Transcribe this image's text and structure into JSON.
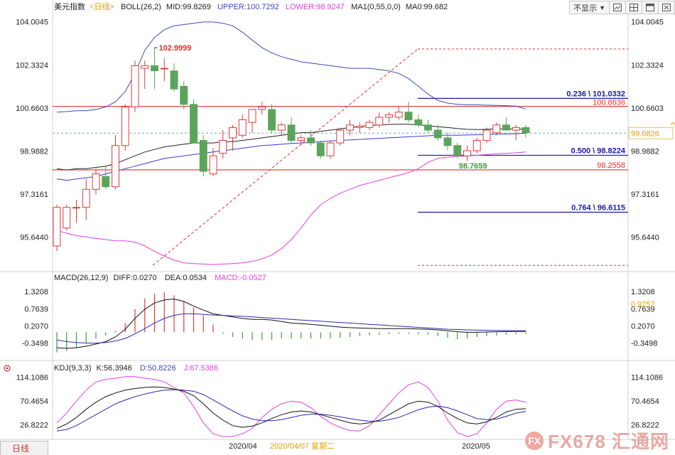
{
  "header": {
    "title": "美元指数",
    "period": "<日线>",
    "boll": "BOLL(26,2)",
    "mid": "MID:99.8269",
    "upper": "UPPER:100.7292",
    "lower": "LOWER:98.9247",
    "ma_params": "MA1(0,55,0,0)",
    "ma_value": "MA0:99.682"
  },
  "toolbar": {
    "hide_label": "不显示",
    "icons": [
      "chart-icon",
      "grid-icon",
      "window-icon",
      "close-icon"
    ]
  },
  "macd_header": {
    "title": "MACD(26,12,9)",
    "diff": "DIFF:0.0270",
    "dea": "DEA:0.0534",
    "macd": "MACD:-0.0527"
  },
  "kdj_header": {
    "title": "KDJ(9,3,3)",
    "k": "K:56.3946",
    "d": "D:50.8226",
    "j": "J:67.5386"
  },
  "bottom": {
    "tab_label": "日线",
    "date1": "2020/04",
    "date_cursor": "2020/04/07 星期二",
    "date2": "2020/05"
  },
  "watermark": {
    "logo": "FX",
    "text": "FX678 汇通网"
  },
  "colors": {
    "up": "#e03a3a",
    "down": "#5aa55a",
    "upper_band": "#3c4ab8",
    "lower_band": "#e040e0",
    "mid": "#222222",
    "ma": "#3a3ad0",
    "red_line": "#e03030",
    "dashed": "#e03030",
    "current_price": "#e8a000",
    "macd_pos": "#e03a3a",
    "macd_neg": "#3a9a3a"
  },
  "chart_data": [
    {
      "type": "candlestick",
      "title": "美元指数",
      "y_ticks": [
        "104.0045",
        "102.3324",
        "100.6603",
        "98.9882",
        "97.3161",
        "95.6440"
      ],
      "ylim": [
        94.5,
        104.3
      ],
      "candles": [
        {
          "o": 95.3,
          "h": 96.9,
          "l": 95.1,
          "c": 96.8
        },
        {
          "o": 96.0,
          "h": 96.9,
          "l": 95.9,
          "c": 96.8
        },
        {
          "o": 96.8,
          "h": 97.1,
          "l": 96.2,
          "c": 96.8
        },
        {
          "o": 96.8,
          "h": 97.9,
          "l": 96.3,
          "c": 97.5
        },
        {
          "o": 97.5,
          "h": 98.3,
          "l": 97.3,
          "c": 98.1
        },
        {
          "o": 98.0,
          "h": 98.4,
          "l": 97.5,
          "c": 97.6
        },
        {
          "o": 97.6,
          "h": 99.6,
          "l": 97.5,
          "c": 99.2
        },
        {
          "o": 99.2,
          "h": 100.8,
          "l": 99.0,
          "c": 100.7
        },
        {
          "o": 100.7,
          "h": 102.5,
          "l": 100.5,
          "c": 102.3
        },
        {
          "o": 102.2,
          "h": 102.5,
          "l": 101.4,
          "c": 102.3
        },
        {
          "o": 102.3,
          "h": 103.0,
          "l": 101.4,
          "c": 102.1
        },
        {
          "o": 102.2,
          "h": 102.6,
          "l": 101.7,
          "c": 102.2
        },
        {
          "o": 102.1,
          "h": 102.4,
          "l": 101.3,
          "c": 101.4
        },
        {
          "o": 101.5,
          "h": 101.7,
          "l": 100.6,
          "c": 100.8
        },
        {
          "o": 100.8,
          "h": 101.0,
          "l": 99.3,
          "c": 99.3
        },
        {
          "o": 99.4,
          "h": 99.6,
          "l": 98.0,
          "c": 98.2
        },
        {
          "o": 98.1,
          "h": 99.1,
          "l": 98.0,
          "c": 98.8
        },
        {
          "o": 98.9,
          "h": 99.8,
          "l": 98.7,
          "c": 99.4
        },
        {
          "o": 99.5,
          "h": 100.0,
          "l": 99.0,
          "c": 99.9
        },
        {
          "o": 99.6,
          "h": 100.4,
          "l": 99.5,
          "c": 100.2
        },
        {
          "o": 100.1,
          "h": 100.6,
          "l": 99.7,
          "c": 100.6
        },
        {
          "o": 100.6,
          "h": 100.9,
          "l": 100.4,
          "c": 100.7
        },
        {
          "o": 100.6,
          "h": 100.8,
          "l": 99.7,
          "c": 99.8
        },
        {
          "o": 99.8,
          "h": 100.1,
          "l": 99.6,
          "c": 100.0
        },
        {
          "o": 100.0,
          "h": 100.3,
          "l": 99.3,
          "c": 99.4
        },
        {
          "o": 99.4,
          "h": 99.6,
          "l": 99.2,
          "c": 99.5
        },
        {
          "o": 99.5,
          "h": 99.8,
          "l": 99.2,
          "c": 99.3
        },
        {
          "o": 99.3,
          "h": 99.4,
          "l": 98.7,
          "c": 98.8
        },
        {
          "o": 98.8,
          "h": 99.4,
          "l": 98.7,
          "c": 99.3
        },
        {
          "o": 99.3,
          "h": 99.9,
          "l": 99.2,
          "c": 99.8
        },
        {
          "o": 99.8,
          "h": 100.2,
          "l": 99.6,
          "c": 100.0
        },
        {
          "o": 99.9,
          "h": 100.1,
          "l": 99.7,
          "c": 99.95
        },
        {
          "o": 99.9,
          "h": 100.2,
          "l": 99.8,
          "c": 100.1
        },
        {
          "o": 100.0,
          "h": 100.5,
          "l": 99.9,
          "c": 100.3
        },
        {
          "o": 100.3,
          "h": 100.5,
          "l": 100.1,
          "c": 100.4
        },
        {
          "o": 100.3,
          "h": 100.7,
          "l": 100.2,
          "c": 100.5
        },
        {
          "o": 100.5,
          "h": 100.9,
          "l": 100.1,
          "c": 100.2
        },
        {
          "o": 100.2,
          "h": 100.4,
          "l": 99.9,
          "c": 100.0
        },
        {
          "o": 100.0,
          "h": 100.2,
          "l": 99.7,
          "c": 99.8
        },
        {
          "o": 99.8,
          "h": 100.0,
          "l": 99.4,
          "c": 99.5
        },
        {
          "o": 99.5,
          "h": 99.7,
          "l": 99.0,
          "c": 99.2
        },
        {
          "o": 99.2,
          "h": 99.3,
          "l": 98.7,
          "c": 98.8
        },
        {
          "o": 98.8,
          "h": 99.2,
          "l": 98.6,
          "c": 99.0
        },
        {
          "o": 99.0,
          "h": 99.5,
          "l": 98.9,
          "c": 99.4
        },
        {
          "o": 99.4,
          "h": 99.9,
          "l": 99.3,
          "c": 99.8
        },
        {
          "o": 99.7,
          "h": 100.1,
          "l": 99.6,
          "c": 100.0
        },
        {
          "o": 100.0,
          "h": 100.3,
          "l": 99.8,
          "c": 99.8
        },
        {
          "o": 99.8,
          "h": 100.0,
          "l": 99.4,
          "c": 99.9
        },
        {
          "o": 99.9,
          "h": 100.0,
          "l": 99.5,
          "c": 99.7
        }
      ],
      "mid_line": [
        98.3,
        98.25,
        98.3,
        98.3,
        98.35,
        98.4,
        98.5,
        98.65,
        98.8,
        98.95,
        99.05,
        99.15,
        99.2,
        99.25,
        99.3,
        99.3,
        99.3,
        99.35,
        99.35,
        99.4,
        99.45,
        99.5,
        99.55,
        99.6,
        99.65,
        99.7,
        99.7,
        99.75,
        99.8,
        99.85,
        99.9,
        99.95,
        99.98,
        100.0,
        100.02,
        100.03,
        100.03,
        100.0,
        99.97,
        99.93,
        99.9,
        99.86,
        99.83,
        99.82,
        99.83,
        99.85,
        99.85,
        99.84,
        99.83
      ],
      "ma_line": [
        97.9,
        97.85,
        97.9,
        97.95,
        98.0,
        98.1,
        98.2,
        98.3,
        98.4,
        98.5,
        98.6,
        98.7,
        98.75,
        98.8,
        98.85,
        98.9,
        98.95,
        99.0,
        99.05,
        99.1,
        99.15,
        99.2,
        99.22,
        99.25,
        99.28,
        99.3,
        99.32,
        99.35,
        99.38,
        99.4,
        99.42,
        99.44,
        99.46,
        99.48,
        99.5,
        99.52,
        99.54,
        99.56,
        99.58,
        99.6,
        99.6,
        99.6,
        99.61,
        99.62,
        99.63,
        99.64,
        99.65,
        99.66,
        99.68
      ],
      "upper_band": [
        100.5,
        100.52,
        100.55,
        100.55,
        100.6,
        100.7,
        100.9,
        101.3,
        102.0,
        102.9,
        103.4,
        103.7,
        103.85,
        103.9,
        103.95,
        104.0,
        104.0,
        103.95,
        103.85,
        103.6,
        103.3,
        103.0,
        102.8,
        102.65,
        102.55,
        102.45,
        102.4,
        102.35,
        102.3,
        102.25,
        102.2,
        102.2,
        102.2,
        102.15,
        102.1,
        102.0,
        101.8,
        101.5,
        101.2,
        100.95,
        100.85,
        100.8,
        100.78,
        100.78,
        100.77,
        100.76,
        100.75,
        100.73,
        100.62
      ],
      "lower_band": [
        95.9,
        95.8,
        95.7,
        95.65,
        95.6,
        95.55,
        95.5,
        95.5,
        95.45,
        95.3,
        95.1,
        94.9,
        94.75,
        94.65,
        94.62,
        94.6,
        94.58,
        94.6,
        94.62,
        94.65,
        94.7,
        94.8,
        94.95,
        95.2,
        95.55,
        96.0,
        96.5,
        96.9,
        97.15,
        97.35,
        97.5,
        97.65,
        97.75,
        97.85,
        97.95,
        98.05,
        98.15,
        98.3,
        98.55,
        98.7,
        98.75,
        98.78,
        98.8,
        98.82,
        98.85,
        98.88,
        98.9,
        98.92,
        98.95
      ],
      "annotations": {
        "high_label": "102.9999",
        "low_label": "98.7659",
        "red_level_high": 100.72,
        "red_level_low": 98.2558,
        "red_level_low_label": "98.2558",
        "fib_236_label": "0.236 \\ 101.0332",
        "fib_236": 101.0332,
        "fib_500_label": "0.500 \\ 98.8224",
        "fib_500": 98.8224,
        "fib_764_label": "0.764 \\ 96.6115",
        "fib_764": 96.6115,
        "fib_top": 102.95,
        "fib_bottom": 94.55,
        "overlap_label": "100.8636",
        "current_price": "99.6826",
        "current_value": 99.6826
      }
    },
    {
      "type": "bar+line",
      "title": "MACD(26,12,9)",
      "y_ticks": [
        "1.3208",
        "0.7639",
        "0.2070",
        "-0.3498"
      ],
      "ylim": [
        -0.75,
        1.6
      ],
      "current_label": "0.9252",
      "macd_bars": [
        -0.65,
        -0.6,
        -0.5,
        -0.35,
        -0.2,
        -0.1,
        0.05,
        0.3,
        0.75,
        1.1,
        1.25,
        1.3,
        1.2,
        1.0,
        0.8,
        0.55,
        0.25,
        -0.05,
        -0.15,
        -0.2,
        -0.25,
        -0.25,
        -0.25,
        -0.2,
        -0.2,
        -0.2,
        -0.2,
        -0.2,
        -0.2,
        -0.18,
        -0.15,
        -0.12,
        -0.1,
        -0.08,
        -0.06,
        -0.05,
        -0.05,
        -0.06,
        -0.08,
        -0.12,
        -0.18,
        -0.22,
        -0.2,
        -0.15,
        -0.12,
        -0.1,
        -0.08,
        -0.06,
        -0.05
      ],
      "diff": [
        -0.5,
        -0.52,
        -0.5,
        -0.45,
        -0.38,
        -0.3,
        -0.15,
        0.1,
        0.45,
        0.75,
        0.95,
        1.05,
        1.08,
        1.0,
        0.85,
        0.72,
        0.6,
        0.55,
        0.5,
        0.45,
        0.42,
        0.42,
        0.4,
        0.35,
        0.3,
        0.28,
        0.26,
        0.23,
        0.2,
        0.17,
        0.15,
        0.14,
        0.13,
        0.12,
        0.12,
        0.12,
        0.12,
        0.11,
        0.1,
        0.08,
        0.05,
        0.02,
        0.0,
        0.0,
        0.01,
        0.02,
        0.025,
        0.027,
        0.027
      ],
      "dea": [
        -0.25,
        -0.3,
        -0.33,
        -0.35,
        -0.35,
        -0.33,
        -0.28,
        -0.2,
        -0.05,
        0.12,
        0.3,
        0.45,
        0.55,
        0.6,
        0.6,
        0.58,
        0.56,
        0.55,
        0.53,
        0.52,
        0.5,
        0.48,
        0.46,
        0.44,
        0.42,
        0.4,
        0.38,
        0.36,
        0.34,
        0.32,
        0.3,
        0.28,
        0.26,
        0.24,
        0.22,
        0.2,
        0.18,
        0.16,
        0.14,
        0.12,
        0.1,
        0.09,
        0.08,
        0.07,
        0.065,
        0.06,
        0.057,
        0.055,
        0.0534
      ]
    },
    {
      "type": "line",
      "title": "KDJ(9,3,3)",
      "y_ticks": [
        "114.1086",
        "70.4654",
        "26.8222"
      ],
      "ylim": [
        5,
        125
      ],
      "k": [
        20,
        28,
        40,
        55,
        68,
        78,
        85,
        90,
        93,
        95,
        96,
        95,
        92,
        88,
        80,
        65,
        48,
        35,
        25,
        22,
        24,
        30,
        38,
        45,
        50,
        52,
        50,
        45,
        40,
        35,
        30,
        28,
        30,
        35,
        45,
        55,
        65,
        70,
        68,
        60,
        48,
        38,
        30,
        28,
        32,
        40,
        50,
        55,
        56
      ],
      "d": [
        15,
        18,
        25,
        35,
        45,
        55,
        65,
        72,
        78,
        83,
        87,
        90,
        91,
        90,
        88,
        82,
        72,
        62,
        52,
        43,
        37,
        34,
        34,
        36,
        40,
        44,
        46,
        46,
        44,
        41,
        38,
        35,
        33,
        33,
        36,
        40,
        47,
        54,
        59,
        61,
        58,
        52,
        45,
        38,
        36,
        37,
        42,
        48,
        51
      ],
      "j": [
        30,
        48,
        70,
        90,
        105,
        110,
        112,
        115,
        115,
        112,
        110,
        105,
        95,
        85,
        60,
        30,
        10,
        5,
        5,
        10,
        20,
        40,
        55,
        65,
        70,
        68,
        58,
        42,
        30,
        22,
        16,
        15,
        25,
        45,
        65,
        85,
        100,
        105,
        95,
        70,
        35,
        12,
        5,
        10,
        30,
        55,
        70,
        72,
        68
      ]
    }
  ]
}
